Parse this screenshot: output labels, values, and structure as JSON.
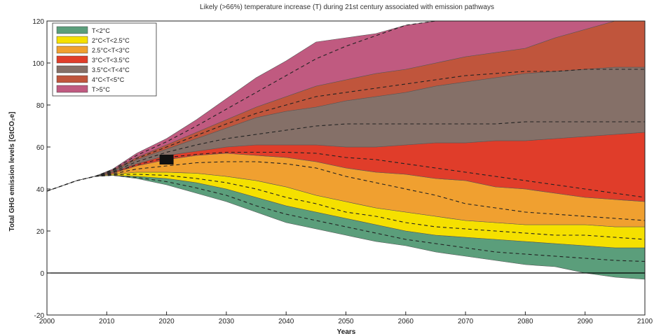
{
  "chart_data": {
    "type": "area",
    "title": "Likely (>66%) temperature increase (T) during 21st century associated with emission pathways",
    "xlabel": "Years",
    "ylabel": "Total GHG emission levels [GtCO₂e]",
    "xlim": [
      2000,
      2100
    ],
    "ylim": [
      -20,
      120
    ],
    "xticks": [
      "2000",
      "2010",
      "2020",
      "2030",
      "2040",
      "2050",
      "2060",
      "2070",
      "2080",
      "2090",
      "2100"
    ],
    "yticks": [
      "-20",
      "0",
      "20",
      "40",
      "60",
      "80",
      "100",
      "120"
    ],
    "grid": false,
    "legend_position": "top-left",
    "marker": {
      "x": 2020,
      "y": 54,
      "color": "#111111"
    },
    "zero_line": 0,
    "x": [
      2000,
      2002,
      2005,
      2008,
      2011,
      2015,
      2020,
      2025,
      2030,
      2035,
      2040,
      2045,
      2050,
      2055,
      2060,
      2065,
      2070,
      2075,
      2080,
      2085,
      2090,
      2095,
      2100
    ],
    "series": [
      {
        "name": "T<2°C",
        "color": "#5b9e7b",
        "lower": [
          39,
          41,
          44,
          46,
          46.5,
          45,
          42,
          38,
          34,
          29,
          24,
          21,
          18,
          15,
          13,
          10,
          8,
          6,
          4,
          3,
          0,
          -2,
          -3
        ],
        "upper": [
          39,
          41,
          44,
          46,
          46.5,
          46,
          45,
          43,
          40,
          36,
          32,
          29,
          26,
          23,
          20,
          18,
          17,
          16,
          15,
          14,
          13,
          12,
          12
        ],
        "median": [
          39,
          41,
          44,
          46,
          46.5,
          45.5,
          43.5,
          40.5,
          37,
          32,
          28,
          25,
          22,
          19,
          16,
          14,
          12,
          10,
          9,
          8,
          7,
          6,
          5.5
        ]
      },
      {
        "name": "2°C<T<2.5°C",
        "color": "#f5e000",
        "lower": [
          39,
          41,
          44,
          46,
          46.5,
          46,
          45,
          43,
          40,
          36,
          32,
          29,
          26,
          23,
          20,
          18,
          17,
          16,
          15,
          14,
          13,
          12,
          12
        ],
        "upper": [
          39,
          41,
          44,
          46,
          47,
          48,
          48,
          47.5,
          46,
          44,
          41,
          37,
          34,
          31,
          29,
          27,
          25,
          24,
          23,
          23,
          23,
          22,
          22
        ],
        "median": [
          39,
          41,
          44,
          46,
          46.8,
          47,
          46.5,
          45,
          43,
          40,
          36,
          33,
          29,
          27,
          24,
          22,
          21,
          20,
          19,
          18,
          18,
          17,
          16
        ]
      },
      {
        "name": "2.5°C<T<3°C",
        "color": "#f0a030",
        "lower": [
          39,
          41,
          44,
          46,
          47,
          48,
          48,
          47.5,
          46,
          44,
          41,
          37,
          34,
          31,
          29,
          27,
          25,
          24,
          23,
          23,
          23,
          22,
          22
        ],
        "upper": [
          39,
          41,
          44,
          46,
          47.5,
          51,
          54,
          56,
          57,
          56,
          55,
          53,
          50,
          48,
          47,
          45,
          44,
          41,
          40,
          38,
          36,
          35,
          34
        ],
        "median": [
          39,
          41,
          44,
          46,
          47.2,
          49.5,
          51,
          52.5,
          53,
          53,
          52,
          50,
          46,
          43,
          40,
          37,
          33,
          31,
          29,
          28,
          27,
          26,
          25
        ]
      },
      {
        "name": "3°C<T<3.5°C",
        "color": "#e03d2a",
        "lower": [
          39,
          41,
          44,
          46,
          47.5,
          51,
          54,
          56,
          57,
          56,
          55,
          53,
          50,
          48,
          47,
          45,
          44,
          41,
          40,
          38,
          36,
          35,
          34
        ],
        "upper": [
          39,
          41,
          44,
          46,
          48,
          52,
          56,
          58,
          60,
          61,
          61,
          61,
          60,
          60,
          61,
          62,
          62,
          63,
          63,
          64,
          65,
          66,
          67
        ],
        "median": [
          39,
          41,
          44,
          46,
          47.8,
          51.5,
          55,
          56.5,
          57.5,
          57.5,
          57.5,
          57,
          55,
          54,
          52,
          50,
          48,
          46,
          44,
          42,
          40,
          38,
          36
        ]
      },
      {
        "name": "3.5°C<T<4°C",
        "color": "#857068",
        "lower": [
          39,
          41,
          44,
          46,
          48,
          52,
          56,
          58,
          60,
          61,
          61,
          61,
          60,
          60,
          61,
          62,
          62,
          63,
          63,
          64,
          65,
          66,
          67
        ],
        "upper": [
          39,
          41,
          44,
          46,
          48.5,
          54,
          59,
          64,
          69,
          74,
          77,
          79,
          82,
          84,
          86,
          89,
          91,
          93,
          95,
          96,
          97,
          98,
          98
        ],
        "median": [
          39,
          41,
          44,
          46,
          48.2,
          53,
          57.5,
          61,
          64,
          66,
          68,
          70,
          71,
          71,
          71,
          71,
          71,
          71,
          72,
          72,
          72,
          72,
          72
        ]
      },
      {
        "name": "4°C<T<5°C",
        "color": "#c0553c",
        "lower": [
          39,
          41,
          44,
          46,
          48.5,
          54,
          59,
          64,
          69,
          74,
          77,
          79,
          82,
          84,
          86,
          89,
          91,
          93,
          95,
          96,
          97,
          98,
          98
        ],
        "upper": [
          39,
          41,
          44,
          46,
          49,
          55,
          61,
          67,
          73,
          79,
          84,
          89,
          92,
          95,
          97,
          100,
          103,
          105,
          107,
          112,
          116,
          120,
          120
        ],
        "median": [
          39,
          41,
          44,
          46,
          48.8,
          54.5,
          60,
          65.5,
          71,
          76,
          80,
          84,
          86,
          88,
          90,
          92,
          94,
          95,
          96,
          96,
          97,
          97,
          97
        ]
      },
      {
        "name": "T>5°C",
        "color": "#c05a80",
        "lower": [
          39,
          41,
          44,
          46,
          49,
          55,
          61,
          67,
          73,
          79,
          84,
          89,
          92,
          95,
          97,
          100,
          103,
          105,
          107,
          112,
          116,
          120,
          120
        ],
        "upper": [
          39,
          41,
          44,
          46,
          49.5,
          57,
          64,
          73,
          83,
          93,
          101,
          110,
          112,
          114,
          118,
          120,
          120,
          120,
          120,
          120,
          120,
          120,
          120
        ],
        "median": [
          39,
          41,
          44,
          46,
          49.2,
          56,
          62.5,
          70,
          78,
          86,
          94,
          102,
          108,
          113,
          118,
          120,
          120,
          120,
          120,
          120,
          120,
          120,
          120
        ]
      }
    ]
  }
}
